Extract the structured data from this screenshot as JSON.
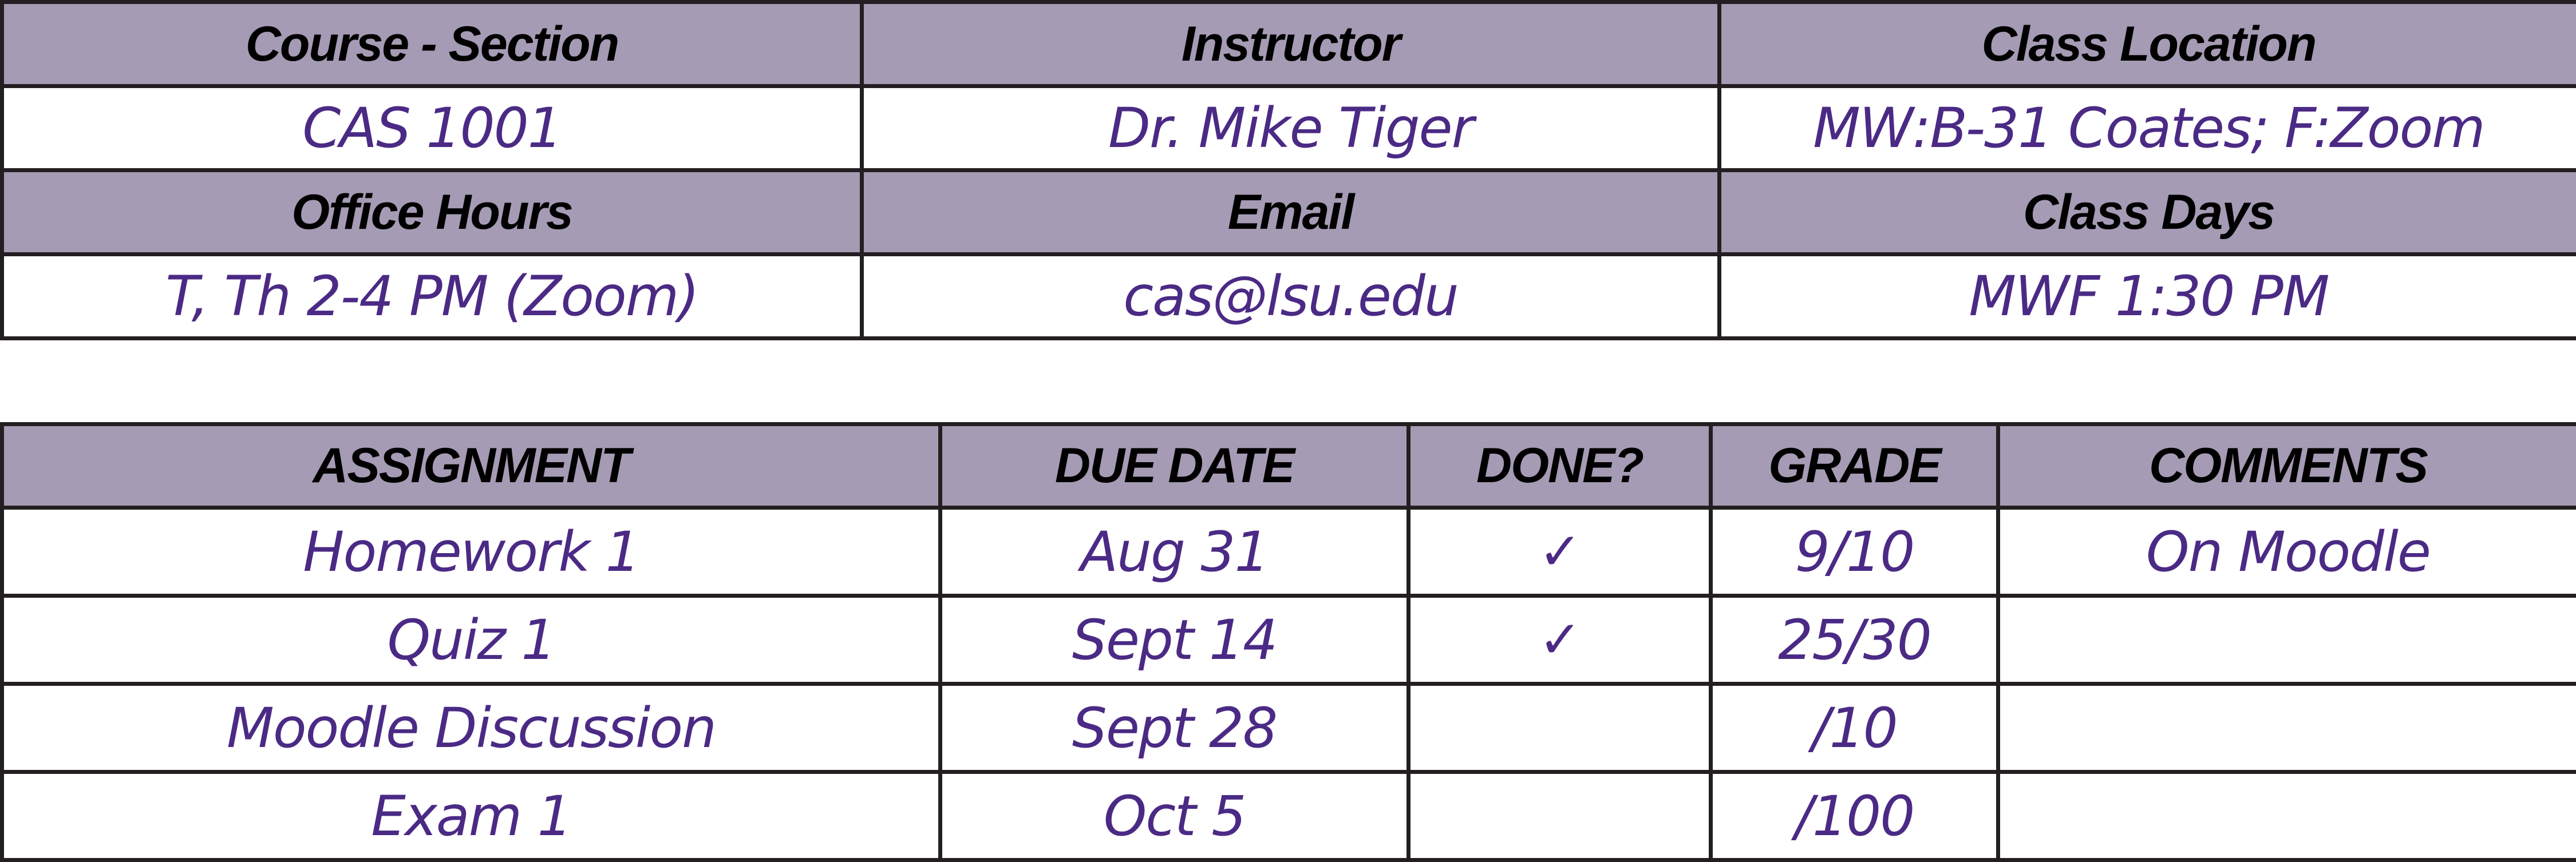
{
  "course_info": {
    "headers_1": [
      "Course - Section",
      "Instructor",
      "Class Location"
    ],
    "values_1": [
      "CAS 1001",
      "Dr. Mike Tiger",
      "MW:B-31 Coates; F:Zoom"
    ],
    "headers_2": [
      "Office Hours",
      "Email",
      "Class Days"
    ],
    "values_2": [
      "T, Th 2-4 PM (Zoom)",
      "cas@lsu.edu",
      "MWF 1:30 PM"
    ]
  },
  "assignments": {
    "columns": [
      "ASSIGNMENT",
      "DUE DATE",
      "DONE?",
      "GRADE",
      "COMMENTS"
    ],
    "rows": [
      {
        "assignment": "Homework 1",
        "due": "Aug 31",
        "done": "✓",
        "grade": "9/10",
        "comments": "On Moodle"
      },
      {
        "assignment": "Quiz 1",
        "due": "Sept 14",
        "done": "✓",
        "grade": "25/30",
        "comments": ""
      },
      {
        "assignment": "Moodle Discussion",
        "due": "Sept 28",
        "done": "",
        "grade": "/10",
        "comments": ""
      },
      {
        "assignment": "Exam 1",
        "due": "Oct 5",
        "done": "",
        "grade": "/100",
        "comments": ""
      }
    ]
  },
  "colors": {
    "header_bg": "#a59bb4",
    "handwriting": "#4b2a85",
    "border": "#231f20"
  }
}
